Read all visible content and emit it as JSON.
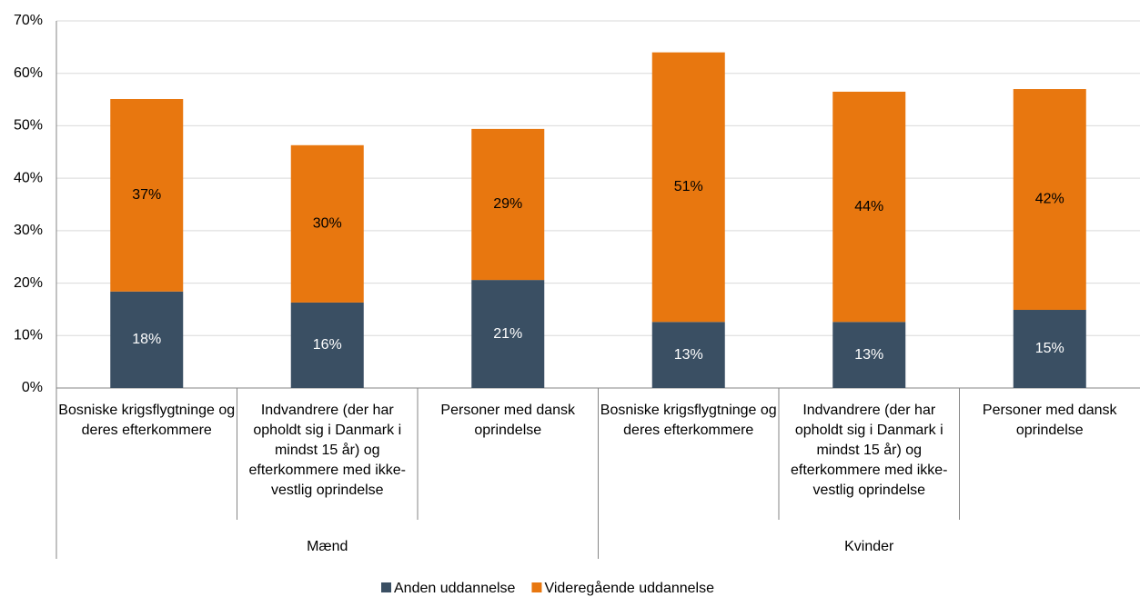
{
  "chart_data": {
    "type": "stacked_bar",
    "categories": [
      "Bosniske krigsflygtninge og deres efterkommere",
      "Indvandrere (der har opholdt sig i Danmark i mindst 15 år) og efterkommere med ikke-vestlig oprindelse",
      "Personer med dansk oprindelse",
      "Bosniske krigsflygtninge og deres efterkommere",
      "Indvandrere (der har opholdt sig i Danmark i mindst 15 år) og efterkommere med ikke-vestlig oprindelse",
      "Personer med dansk oprindelse"
    ],
    "groups": [
      "Mænd",
      "Kvinder"
    ],
    "series": [
      {
        "name": "Anden uddannelse",
        "color": "#3a4f63",
        "values": [
          18.4,
          16.3,
          20.6,
          12.6,
          12.6,
          14.9
        ],
        "value_labels": [
          "18%",
          "16%",
          "21%",
          "13%",
          "13%",
          "15%"
        ]
      },
      {
        "name": "Videregående uddannelse",
        "color": "#e8770f",
        "values": [
          36.7,
          30.0,
          28.8,
          51.4,
          43.9,
          42.1
        ],
        "value_labels": [
          "37%",
          "30%",
          "29%",
          "51%",
          "44%",
          "42%"
        ]
      }
    ],
    "ylim": [
      0,
      70
    ],
    "yticks": [
      {
        "value": 0,
        "label": "0%"
      },
      {
        "value": 10,
        "label": "10%"
      },
      {
        "value": 20,
        "label": "20%"
      },
      {
        "value": 30,
        "label": "30%"
      },
      {
        "value": 40,
        "label": "40%"
      },
      {
        "value": 50,
        "label": "50%"
      },
      {
        "value": 60,
        "label": "60%"
      },
      {
        "value": 70,
        "label": "70%"
      }
    ],
    "grid": true
  }
}
